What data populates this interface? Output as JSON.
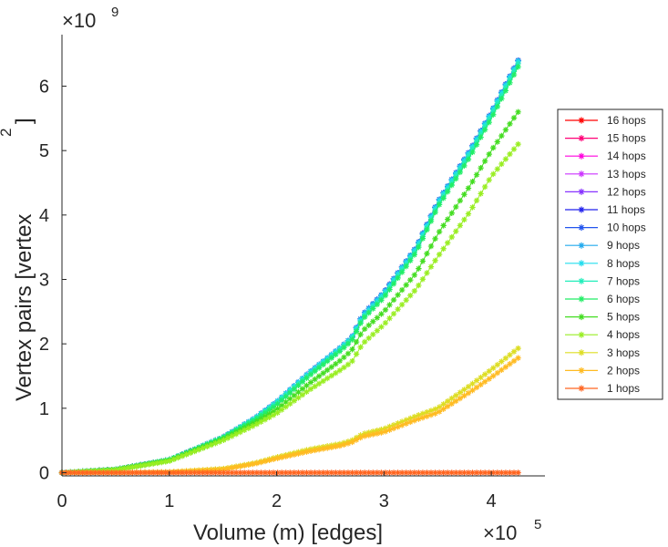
{
  "chart_data": {
    "type": "line",
    "title": "",
    "xlabel": "Volume (m) [edges]",
    "ylabel": "Vertex pairs [vertex",
    "ylabel_superscript": "2",
    "ylabel_close": "]",
    "x_exponent_base": "×10",
    "x_exponent_power": "5",
    "y_exponent_base": "×10",
    "y_exponent_power": "9",
    "xlim": [
      0,
      4.5
    ],
    "ylim": [
      -0.05,
      6.8
    ],
    "xticks": [
      0,
      1,
      2,
      3,
      4
    ],
    "xtick_labels": [
      "0",
      "1",
      "2",
      "3",
      "4"
    ],
    "yticks": [
      0,
      1,
      2,
      3,
      4,
      5,
      6
    ],
    "ytick_labels": [
      "0",
      "1",
      "2",
      "3",
      "4",
      "5",
      "6"
    ],
    "grid": false,
    "legend_position": "right",
    "x": [
      0,
      0.5,
      1.0,
      1.5,
      1.8,
      2.0,
      2.3,
      2.6,
      2.7,
      2.8,
      3.0,
      3.3,
      3.5,
      3.8,
      4.0,
      4.25
    ],
    "series": [
      {
        "name": "16 hops",
        "color": "#ff0000",
        "values": [
          0,
          0.05,
          0.2,
          0.55,
          0.85,
          1.1,
          1.55,
          1.95,
          2.1,
          2.45,
          2.8,
          3.5,
          4.2,
          5.0,
          5.6,
          6.4
        ]
      },
      {
        "name": "15 hops",
        "color": "#ff0077",
        "values": [
          0,
          0.05,
          0.2,
          0.55,
          0.85,
          1.1,
          1.55,
          1.95,
          2.1,
          2.45,
          2.8,
          3.5,
          4.2,
          5.0,
          5.6,
          6.4
        ]
      },
      {
        "name": "14 hops",
        "color": "#ff00dd",
        "values": [
          0,
          0.05,
          0.2,
          0.55,
          0.85,
          1.1,
          1.55,
          1.95,
          2.1,
          2.45,
          2.8,
          3.5,
          4.2,
          5.0,
          5.6,
          6.4
        ]
      },
      {
        "name": "13 hops",
        "color": "#cc33ff",
        "values": [
          0,
          0.05,
          0.2,
          0.55,
          0.85,
          1.1,
          1.55,
          1.95,
          2.1,
          2.45,
          2.8,
          3.5,
          4.2,
          5.0,
          5.6,
          6.4
        ]
      },
      {
        "name": "12 hops",
        "color": "#8833ff",
        "values": [
          0,
          0.05,
          0.2,
          0.55,
          0.85,
          1.1,
          1.55,
          1.95,
          2.1,
          2.45,
          2.8,
          3.5,
          4.2,
          5.0,
          5.6,
          6.4
        ]
      },
      {
        "name": "11 hops",
        "color": "#2222ee",
        "values": [
          0,
          0.05,
          0.2,
          0.55,
          0.85,
          1.1,
          1.55,
          1.95,
          2.1,
          2.45,
          2.8,
          3.5,
          4.2,
          5.0,
          5.6,
          6.4
        ]
      },
      {
        "name": "10 hops",
        "color": "#2255ee",
        "values": [
          0,
          0.05,
          0.2,
          0.55,
          0.85,
          1.1,
          1.55,
          1.95,
          2.1,
          2.45,
          2.8,
          3.5,
          4.2,
          5.0,
          5.6,
          6.4
        ]
      },
      {
        "name": "9 hops",
        "color": "#22aaee",
        "values": [
          0,
          0.05,
          0.2,
          0.55,
          0.85,
          1.1,
          1.55,
          1.95,
          2.1,
          2.45,
          2.8,
          3.5,
          4.2,
          5.0,
          5.6,
          6.4
        ]
      },
      {
        "name": "8 hops",
        "color": "#22ddee",
        "values": [
          0,
          0.05,
          0.2,
          0.55,
          0.85,
          1.1,
          1.55,
          1.95,
          2.1,
          2.42,
          2.78,
          3.48,
          4.18,
          4.98,
          5.58,
          6.38
        ]
      },
      {
        "name": "7 hops",
        "color": "#22eebb",
        "values": [
          0,
          0.05,
          0.2,
          0.55,
          0.84,
          1.08,
          1.52,
          1.92,
          2.08,
          2.4,
          2.75,
          3.45,
          4.15,
          4.95,
          5.55,
          6.35
        ]
      },
      {
        "name": "6 hops",
        "color": "#22ee66",
        "values": [
          0,
          0.05,
          0.2,
          0.54,
          0.82,
          1.05,
          1.5,
          1.9,
          2.05,
          2.38,
          2.72,
          3.42,
          4.12,
          4.9,
          5.5,
          6.3
        ]
      },
      {
        "name": "5 hops",
        "color": "#44dd22",
        "values": [
          0,
          0.05,
          0.19,
          0.52,
          0.78,
          0.98,
          1.38,
          1.75,
          1.9,
          2.2,
          2.5,
          3.1,
          3.7,
          4.45,
          5.0,
          5.6
        ]
      },
      {
        "name": "4 hops",
        "color": "#99ee22",
        "values": [
          0,
          0.04,
          0.18,
          0.5,
          0.74,
          0.92,
          1.28,
          1.6,
          1.72,
          2.0,
          2.3,
          2.85,
          3.35,
          4.05,
          4.6,
          5.1
        ]
      },
      {
        "name": "3 hops",
        "color": "#dddd22",
        "values": [
          0,
          0.0,
          0.01,
          0.06,
          0.15,
          0.24,
          0.36,
          0.45,
          0.5,
          0.6,
          0.68,
          0.88,
          1.0,
          1.35,
          1.6,
          1.93
        ]
      },
      {
        "name": "2 hops",
        "color": "#ffbb22",
        "values": [
          0,
          0.0,
          0.01,
          0.05,
          0.14,
          0.22,
          0.33,
          0.42,
          0.47,
          0.56,
          0.63,
          0.82,
          0.93,
          1.25,
          1.48,
          1.78
        ]
      },
      {
        "name": "1 hops",
        "color": "#ff6622",
        "values": [
          0,
          0.0,
          0.0,
          0.0,
          0.0,
          0.0,
          0.0,
          0.0,
          0.0,
          0.0,
          0.0,
          0.0,
          0.0,
          0.0,
          0.0,
          0.0
        ]
      }
    ]
  }
}
